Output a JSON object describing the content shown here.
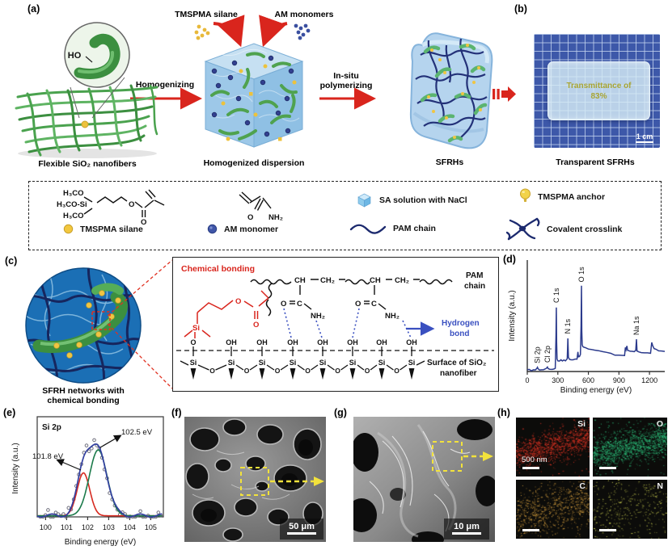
{
  "figure": {
    "panels": {
      "a": "(a)",
      "b": "(b)",
      "c": "(c)",
      "d": "(d)",
      "e": "(e)",
      "f": "(f)",
      "g": "(g)",
      "h": "(h)"
    }
  },
  "panel_a": {
    "tmspma_label": "TMSPMA silane",
    "am_label": "AM monomers",
    "arrow1": "Homogenizing",
    "arrow2_line1": "In-situ",
    "arrow2_line2": "polymerizing",
    "inset_label": "HO",
    "caption_mat": "Flexible SiO₂ nanofibers",
    "caption_cube1": "Homogenized dispersion",
    "caption_cube2": "SFRHs"
  },
  "panel_b": {
    "slab_line1": "Transmittance of",
    "slab_line2": "83%",
    "scale": "1 cm",
    "caption": "Transparent SFRHs"
  },
  "legend": {
    "tmspma_structure": {
      "l1": "H₃CO",
      "l2": "H₃CO-Si",
      "l3": "H₃CO",
      "o1": "O",
      "o2": "O"
    },
    "am_structure": {
      "o": "O",
      "nh2": "NH₂"
    },
    "items": [
      {
        "label": "TMSPMA silane"
      },
      {
        "label": "AM monomer"
      },
      {
        "label": "SA solution with NaCl"
      },
      {
        "label": "TMSPMA anchor"
      },
      {
        "label": "PAM chain"
      },
      {
        "label": "Covalent crosslink"
      }
    ]
  },
  "panel_c": {
    "caption_line1": "SFRH networks with",
    "caption_line2": "chemical bonding",
    "chemical_bonding": "Chemical bonding",
    "pam_line1": "PAM",
    "pam_line2": "chain",
    "hbond_line1": "Hydrogen",
    "hbond_line2": "bond",
    "surface_line1": "Surface of SiO₂",
    "surface_line2": "nanofiber",
    "backbone": {
      "ch1": "CH",
      "ch2a": "CH₂",
      "ch3": "CH",
      "ch2b": "CH₂"
    },
    "amide1": {
      "o": "O",
      "c": "C",
      "nh2": "NH₂"
    },
    "amide2": {
      "o": "O",
      "c": "C",
      "nh2": "NH₂"
    },
    "red_struct": {
      "si": "Si",
      "o1": "O",
      "c": "C",
      "o2": "O"
    },
    "oh_row": [
      "O",
      "OH",
      "OH",
      "OH",
      "OH",
      "OH",
      "OH",
      "OH"
    ],
    "si_label": "Si",
    "bridge_o": "O"
  },
  "panel_d": {
    "ylabel": "Intensity (a.u.)",
    "xlabel": "Binding energy (eV)"
  },
  "panel_e": {
    "ylabel": "Intensity (a.u.)",
    "xlabel": "Binding energy (eV)",
    "inset": "Si 2p",
    "ann1": "101.8 eV",
    "ann2": "102.5 eV"
  },
  "panel_f": {
    "scale": "50 μm"
  },
  "panel_g": {
    "scale": "10 μm"
  },
  "panel_h": {
    "scale": "500 nm",
    "maps": [
      {
        "label": "Si",
        "color": "#e23424",
        "density": 1200,
        "sigma": 0.11,
        "uniform": 0.06
      },
      {
        "label": "O",
        "color": "#2dc27d",
        "density": 1400,
        "sigma": 0.12,
        "uniform": 0.05
      },
      {
        "label": "C",
        "color": "#cf9a3c",
        "density": 800,
        "sigma": 0.17,
        "uniform": 0.12
      },
      {
        "label": "N",
        "color": "#ccd052",
        "density": 360,
        "sigma": 0.23,
        "uniform": 0.3
      }
    ]
  },
  "chart_data": [
    {
      "id": "xps_survey",
      "type": "line",
      "xlabel": "Binding energy (eV)",
      "ylabel": "Intensity (a.u.)",
      "xlim": [
        0,
        1350
      ],
      "xticks": [
        0,
        300,
        600,
        900,
        1200
      ],
      "grid": false,
      "line_color": "#2b3a8c",
      "peaks": [
        {
          "label": "Si 2p",
          "x": 100,
          "i": 0.065
        },
        {
          "label": "Cl 2p",
          "x": 198,
          "i": 0.075
        },
        {
          "label": "C 1s",
          "x": 285,
          "i": 1.0
        },
        {
          "label": "N 1s",
          "x": 399,
          "i": 0.52
        },
        {
          "label": "O 1s",
          "x": 532,
          "i": 1.32
        },
        {
          "label": "Na 1s",
          "x": 1072,
          "i": 0.5
        }
      ],
      "points": [
        [
          0,
          0.02
        ],
        [
          20,
          0.025
        ],
        [
          40,
          0.02
        ],
        [
          60,
          0.03
        ],
        [
          80,
          0.025
        ],
        [
          95,
          0.05
        ],
        [
          100,
          0.065
        ],
        [
          105,
          0.04
        ],
        [
          120,
          0.025
        ],
        [
          140,
          0.03
        ],
        [
          160,
          0.025
        ],
        [
          185,
          0.04
        ],
        [
          198,
          0.075
        ],
        [
          205,
          0.045
        ],
        [
          220,
          0.03
        ],
        [
          245,
          0.03
        ],
        [
          262,
          0.035
        ],
        [
          275,
          0.05
        ],
        [
          282,
          0.55
        ],
        [
          285,
          1.0
        ],
        [
          288,
          0.45
        ],
        [
          292,
          0.2
        ],
        [
          300,
          0.16
        ],
        [
          315,
          0.155
        ],
        [
          330,
          0.175
        ],
        [
          345,
          0.16
        ],
        [
          360,
          0.18
        ],
        [
          375,
          0.17
        ],
        [
          392,
          0.19
        ],
        [
          399,
          0.52
        ],
        [
          404,
          0.22
        ],
        [
          415,
          0.19
        ],
        [
          430,
          0.185
        ],
        [
          450,
          0.19
        ],
        [
          470,
          0.195
        ],
        [
          488,
          0.2
        ],
        [
          497,
          0.31
        ],
        [
          503,
          0.22
        ],
        [
          512,
          0.225
        ],
        [
          522,
          0.26
        ],
        [
          528,
          0.7
        ],
        [
          532,
          1.32
        ],
        [
          535,
          0.62
        ],
        [
          539,
          0.42
        ],
        [
          545,
          0.385
        ],
        [
          555,
          0.375
        ],
        [
          570,
          0.37
        ],
        [
          600,
          0.355
        ],
        [
          630,
          0.345
        ],
        [
          660,
          0.335
        ],
        [
          700,
          0.32
        ],
        [
          740,
          0.305
        ],
        [
          780,
          0.29
        ],
        [
          820,
          0.275
        ],
        [
          860,
          0.26
        ],
        [
          900,
          0.25
        ],
        [
          930,
          0.245
        ],
        [
          955,
          0.25
        ],
        [
          963,
          0.37
        ],
        [
          970,
          0.33
        ],
        [
          978,
          0.4
        ],
        [
          985,
          0.335
        ],
        [
          995,
          0.325
        ],
        [
          1010,
          0.32
        ],
        [
          1030,
          0.315
        ],
        [
          1050,
          0.315
        ],
        [
          1065,
          0.32
        ],
        [
          1072,
          0.5
        ],
        [
          1078,
          0.32
        ],
        [
          1095,
          0.31
        ],
        [
          1120,
          0.3
        ],
        [
          1150,
          0.295
        ],
        [
          1180,
          0.29
        ],
        [
          1210,
          0.29
        ],
        [
          1222,
          0.46
        ],
        [
          1232,
          0.4
        ],
        [
          1245,
          0.36
        ],
        [
          1265,
          0.335
        ],
        [
          1290,
          0.32
        ],
        [
          1320,
          0.315
        ],
        [
          1350,
          0.315
        ]
      ]
    },
    {
      "id": "si2p_fit",
      "type": "line+scatter",
      "xlabel": "Binding energy (eV)",
      "ylabel": "Intensity (a.u.)",
      "xlim": [
        99.6,
        105.6
      ],
      "xticks": [
        100,
        101,
        102,
        103,
        104,
        105
      ],
      "components": [
        {
          "label": "101.8 eV",
          "center": 101.8,
          "sigma": 0.3,
          "amp": 0.62,
          "color": "#d62a20"
        },
        {
          "label": "102.5 eV",
          "center": 102.5,
          "sigma": 0.42,
          "amp": 0.95,
          "color": "#1b7a4a"
        }
      ],
      "envelope_color": "#3340a0",
      "scatter_color": "#70707e"
    }
  ]
}
